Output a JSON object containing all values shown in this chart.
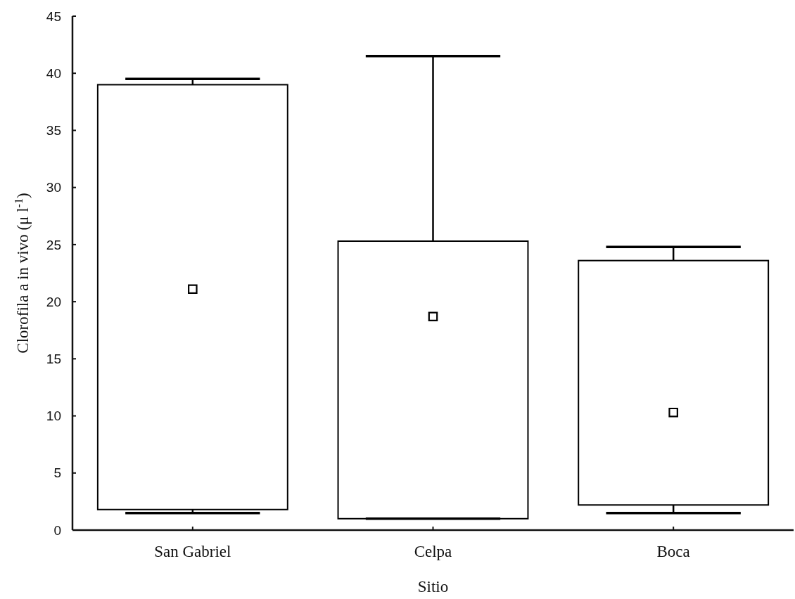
{
  "chart_data": {
    "type": "box",
    "xlabel": "Sitio",
    "ylabel": "Clorofila a in vivo (μ l$^{-1}$)",
    "categories": [
      "San Gabriel",
      "Celpa",
      "Boca"
    ],
    "boxes": [
      {
        "low": 1.5,
        "q1": 1.8,
        "median": 21.1,
        "q3": 39.0,
        "high": 39.5
      },
      {
        "low": 1.0,
        "q1": 1.0,
        "median": 18.7,
        "q3": 25.3,
        "high": 41.5
      },
      {
        "low": 1.5,
        "q1": 2.2,
        "median": 10.3,
        "q3": 23.6,
        "high": 24.8
      }
    ],
    "color": "#000000",
    "marker": "square",
    "ylim": [
      0,
      45
    ],
    "yticks": [
      0,
      5,
      10,
      15,
      20,
      25,
      30,
      35,
      40,
      45
    ],
    "grid": false
  }
}
